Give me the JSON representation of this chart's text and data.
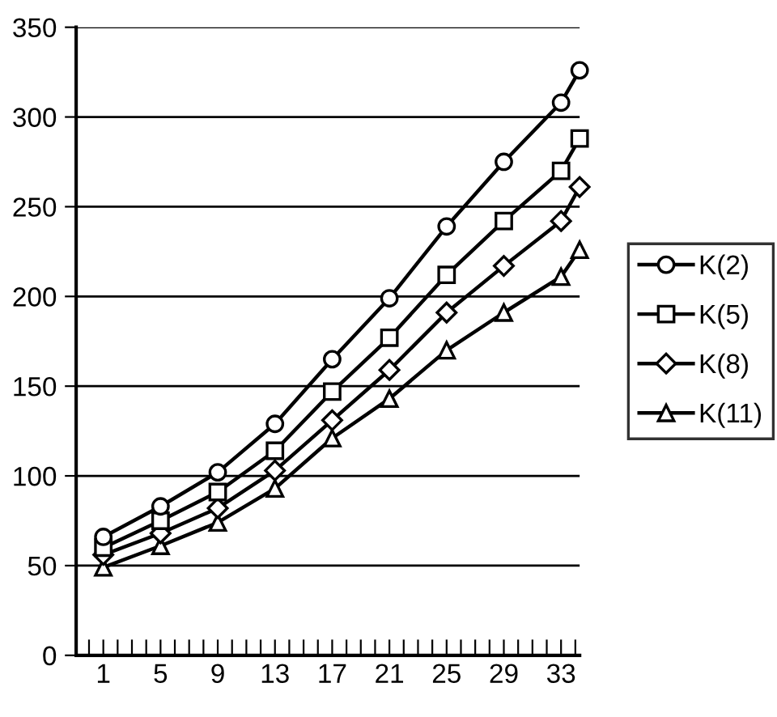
{
  "chart_data": {
    "type": "line",
    "x": [
      1,
      5,
      9,
      13,
      17,
      21,
      25,
      29,
      33,
      34.3
    ],
    "xlim": [
      -0.9,
      34.3
    ],
    "ylim": [
      0,
      350
    ],
    "yticks": [
      0,
      50,
      100,
      150,
      200,
      250,
      300,
      350
    ],
    "xticks": [
      {
        "value": 0,
        "label": null
      },
      {
        "value": 1,
        "label": "1"
      },
      {
        "value": 2,
        "label": null
      },
      {
        "value": 3,
        "label": null
      },
      {
        "value": 4,
        "label": null
      },
      {
        "value": 5,
        "label": "5"
      },
      {
        "value": 6,
        "label": null
      },
      {
        "value": 7,
        "label": null
      },
      {
        "value": 8,
        "label": null
      },
      {
        "value": 9,
        "label": "9"
      },
      {
        "value": 10,
        "label": null
      },
      {
        "value": 11,
        "label": null
      },
      {
        "value": 12,
        "label": null
      },
      {
        "value": 13,
        "label": "13"
      },
      {
        "value": 14,
        "label": null
      },
      {
        "value": 15,
        "label": null
      },
      {
        "value": 16,
        "label": null
      },
      {
        "value": 17,
        "label": "17"
      },
      {
        "value": 18,
        "label": null
      },
      {
        "value": 19,
        "label": null
      },
      {
        "value": 20,
        "label": null
      },
      {
        "value": 21,
        "label": "21"
      },
      {
        "value": 22,
        "label": null
      },
      {
        "value": 23,
        "label": null
      },
      {
        "value": 24,
        "label": null
      },
      {
        "value": 25,
        "label": "25"
      },
      {
        "value": 26,
        "label": null
      },
      {
        "value": 27,
        "label": null
      },
      {
        "value": 28,
        "label": null
      },
      {
        "value": 29,
        "label": "29"
      },
      {
        "value": 30,
        "label": null
      },
      {
        "value": 31,
        "label": null
      },
      {
        "value": 32,
        "label": null
      },
      {
        "value": 33,
        "label": "33"
      },
      {
        "value": 34,
        "label": null
      }
    ],
    "grid": "y",
    "legend": "right",
    "line_style": "solid",
    "series": [
      {
        "name": "K(2)",
        "color": "#000000",
        "marker": "circle",
        "values": [
          66,
          83,
          102,
          129,
          165,
          199,
          239,
          275,
          308,
          326
        ]
      },
      {
        "name": "K(5)",
        "color": "#000000",
        "marker": "square",
        "values": [
          60,
          75,
          91,
          114,
          147,
          177,
          212,
          242,
          270,
          288
        ]
      },
      {
        "name": "K(8)",
        "color": "#000000",
        "marker": "diamond",
        "values": [
          56,
          68,
          82,
          103,
          131,
          159,
          191,
          217,
          242,
          261
        ]
      },
      {
        "name": "K(11)",
        "color": "#000000",
        "marker": "triangle",
        "values": [
          49,
          61,
          74,
          93,
          121,
          143,
          170,
          191,
          211,
          226
        ]
      }
    ]
  }
}
